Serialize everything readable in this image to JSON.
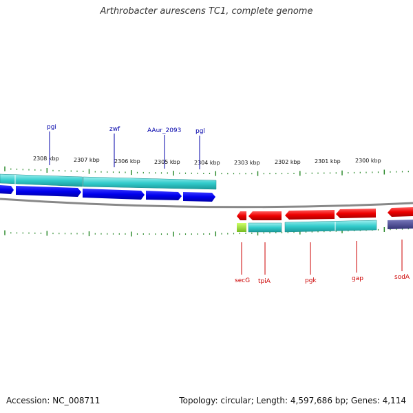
{
  "title": "Arthrobacter aurescens TC1, complete genome",
  "footer": {
    "accession": "Accession: NC_008711",
    "summary": "Topology: circular; Length: 4,597,686 bp; Genes: 4,114"
  },
  "colors": {
    "tick": "#2e8b2e",
    "forward_cds": "#0000ee",
    "forward_gene": "#33cccc",
    "reverse_cds": "#ee0000",
    "reverse_gene": "#33cccc",
    "reverse_rna": "#99dd33",
    "other_feature": "#555599",
    "backbone": "#888888",
    "forward_label": "#0000aa",
    "reverse_label": "#cc0000"
  },
  "ruler": [
    {
      "label": "2308 kbp"
    },
    {
      "label": "2307 kbp"
    },
    {
      "label": "2306 kbp"
    },
    {
      "label": "2305 kbp"
    },
    {
      "label": "2304 kbp"
    },
    {
      "label": "2303 kbp"
    },
    {
      "label": "2302 kbp"
    },
    {
      "label": "2301 kbp"
    },
    {
      "label": "2300 kbp"
    }
  ],
  "forward_labels": [
    {
      "text": "pgi"
    },
    {
      "text": "zwf"
    },
    {
      "text": "AAur_2093"
    },
    {
      "text": "pgl"
    }
  ],
  "reverse_labels": [
    {
      "text": "secG"
    },
    {
      "text": "tpiA"
    },
    {
      "text": "pgk"
    },
    {
      "text": "gap"
    },
    {
      "text": "sodA"
    }
  ]
}
